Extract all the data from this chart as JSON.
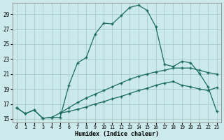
{
  "title": "",
  "xlabel": "Humidex (Indice chaleur)",
  "background_color": "#cce9ec",
  "grid_color": "#aacccc",
  "line_color": "#1a6b5e",
  "xlim": [
    -0.5,
    23.5
  ],
  "ylim": [
    14.5,
    30.5
  ],
  "yticks": [
    15,
    17,
    19,
    21,
    23,
    25,
    27,
    29
  ],
  "xticks": [
    0,
    1,
    2,
    3,
    4,
    5,
    6,
    7,
    8,
    9,
    10,
    11,
    12,
    13,
    14,
    15,
    16,
    17,
    18,
    19,
    20,
    21,
    22,
    23
  ],
  "series1_x": [
    0,
    1,
    2,
    3,
    4,
    5,
    6,
    7,
    8,
    9,
    10,
    11,
    12,
    13,
    14,
    15,
    16,
    17,
    18,
    19,
    20,
    21,
    22,
    23
  ],
  "series1_y": [
    16.5,
    15.7,
    16.2,
    15.1,
    15.2,
    15.2,
    19.5,
    22.5,
    23.2,
    26.3,
    27.8,
    27.7,
    28.8,
    29.9,
    30.2,
    29.5,
    27.3,
    22.3,
    22.0,
    22.7,
    22.5,
    21.1,
    19.3,
    16.0
  ],
  "series2_x": [
    0,
    1,
    2,
    3,
    4,
    5,
    6,
    7,
    8,
    9,
    10,
    11,
    12,
    13,
    14,
    15,
    16,
    17,
    18,
    19,
    20,
    21,
    22,
    23
  ],
  "series2_y": [
    16.5,
    15.7,
    16.2,
    15.1,
    15.2,
    15.8,
    16.5,
    17.2,
    17.8,
    18.3,
    18.8,
    19.3,
    19.8,
    20.3,
    20.7,
    21.0,
    21.3,
    21.5,
    21.8,
    21.8,
    21.8,
    21.5,
    21.2,
    21.0
  ],
  "series3_x": [
    5,
    6,
    7,
    8,
    9,
    10,
    11,
    12,
    13,
    14,
    15,
    16,
    17,
    18,
    19,
    20,
    21,
    22,
    23
  ],
  "series3_y": [
    15.8,
    16.0,
    16.3,
    16.6,
    17.0,
    17.3,
    17.7,
    18.0,
    18.4,
    18.8,
    19.1,
    19.5,
    19.8,
    20.0,
    19.5,
    19.3,
    19.0,
    18.8,
    19.2
  ]
}
